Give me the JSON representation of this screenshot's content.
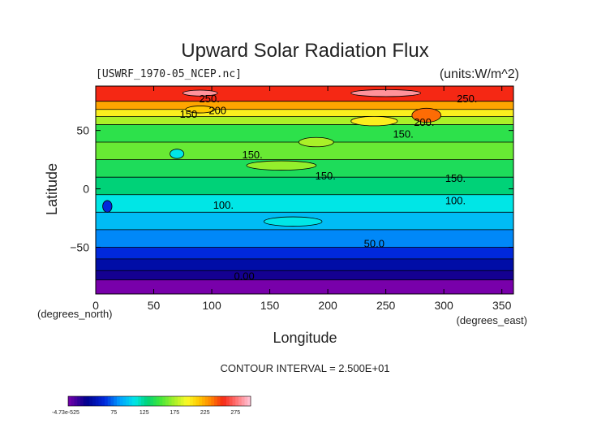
{
  "chart_data": {
    "type": "heatmap",
    "title": "Upward Solar Radiation Flux",
    "file_label": "[USWRF_1970-05_NCEP.nc]",
    "units_label": "(units:W/m^2)",
    "xlabel": "Longitude",
    "ylabel": "Latitude",
    "x_unit_label": "(degrees_east)",
    "y_unit_label": "(degrees_north)",
    "xlim": [
      0,
      360
    ],
    "ylim": [
      -90,
      88
    ],
    "x_ticks": [
      0,
      50,
      100,
      150,
      200,
      250,
      300,
      350
    ],
    "y_ticks": [
      -50,
      0,
      50
    ],
    "contour_interval_text": "CONTOUR INTERVAL = 2.500E+01",
    "contour_labels": [
      {
        "text": "250.",
        "lon": 98,
        "lat": 74
      },
      {
        "text": "200",
        "lon": 105,
        "lat": 64
      },
      {
        "text": "150",
        "lon": 80,
        "lat": 61
      },
      {
        "text": "250.",
        "lon": 320,
        "lat": 74
      },
      {
        "text": "200.",
        "lon": 283,
        "lat": 54
      },
      {
        "text": "150.",
        "lon": 265,
        "lat": 44
      },
      {
        "text": "150.",
        "lon": 135,
        "lat": 26
      },
      {
        "text": "150.",
        "lon": 198,
        "lat": 8
      },
      {
        "text": "150.",
        "lon": 310,
        "lat": 6
      },
      {
        "text": "100.",
        "lon": 110,
        "lat": -17
      },
      {
        "text": "100.",
        "lon": 310,
        "lat": -13
      },
      {
        "text": "50.0",
        "lon": 240,
        "lat": -50
      },
      {
        "text": "0.00",
        "lon": 128,
        "lat": -78
      }
    ],
    "bands": [
      {
        "lat_min": -90,
        "lat_max": -78,
        "value": 0
      },
      {
        "lat_min": -78,
        "lat_max": -70,
        "value": 25
      },
      {
        "lat_min": -70,
        "lat_max": -60,
        "value": 40
      },
      {
        "lat_min": -60,
        "lat_max": -50,
        "value": 60
      },
      {
        "lat_min": -50,
        "lat_max": -35,
        "value": 80
      },
      {
        "lat_min": -35,
        "lat_max": -20,
        "value": 95
      },
      {
        "lat_min": -20,
        "lat_max": -5,
        "value": 110
      },
      {
        "lat_min": -5,
        "lat_max": 10,
        "value": 130
      },
      {
        "lat_min": 10,
        "lat_max": 25,
        "value": 140
      },
      {
        "lat_min": 25,
        "lat_max": 40,
        "value": 160
      },
      {
        "lat_min": 40,
        "lat_max": 55,
        "value": 145
      },
      {
        "lat_min": 55,
        "lat_max": 62,
        "value": 175
      },
      {
        "lat_min": 62,
        "lat_max": 68,
        "value": 200
      },
      {
        "lat_min": 68,
        "lat_max": 75,
        "value": 225
      },
      {
        "lat_min": 75,
        "lat_max": 88,
        "value": 255
      }
    ],
    "highlights": [
      {
        "lon": 90,
        "lat": 82,
        "w": 30,
        "h": 5,
        "value": 285
      },
      {
        "lon": 250,
        "lat": 82,
        "w": 60,
        "h": 6,
        "value": 285
      },
      {
        "lon": 285,
        "lat": 63,
        "w": 25,
        "h": 12,
        "value": 240
      },
      {
        "lon": 90,
        "lat": 68,
        "w": 25,
        "h": 6,
        "value": 215
      },
      {
        "lon": 240,
        "lat": 58,
        "w": 40,
        "h": 8,
        "value": 200
      },
      {
        "lon": 190,
        "lat": 40,
        "w": 30,
        "h": 8,
        "value": 175
      },
      {
        "lon": 70,
        "lat": 30,
        "w": 12,
        "h": 8,
        "value": 110
      },
      {
        "lon": 160,
        "lat": 20,
        "w": 60,
        "h": 8,
        "value": 170
      },
      {
        "lon": 10,
        "lat": -15,
        "w": 8,
        "h": 10,
        "value": 60
      },
      {
        "lon": 170,
        "lat": -28,
        "w": 50,
        "h": 8,
        "value": 110
      }
    ],
    "colorbar": {
      "tick_labels": [
        "-4.73e-525",
        "75",
        "125",
        "175",
        "225",
        "275"
      ],
      "tick_values": [
        0,
        75,
        125,
        175,
        225,
        275
      ],
      "vmin": 0,
      "vmax": 300
    }
  }
}
